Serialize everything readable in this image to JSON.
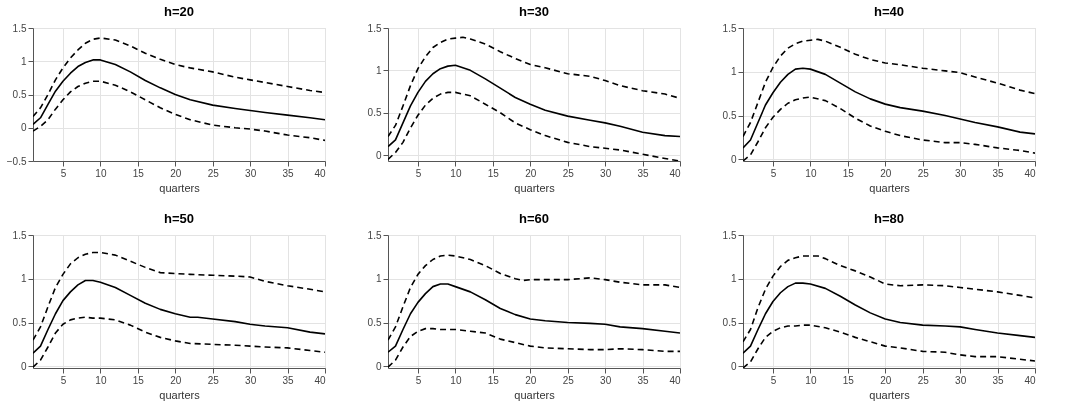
{
  "chart_data": [
    {
      "type": "line",
      "title": "h=20",
      "xlabel": "quarters",
      "xlim": [
        1,
        40
      ],
      "xticks": [
        5,
        10,
        15,
        20,
        25,
        30,
        35,
        40
      ],
      "ylim": [
        -0.5,
        1.5
      ],
      "yticks": [
        -0.5,
        0,
        0.5,
        1,
        1.5
      ],
      "grid": true,
      "legend": false,
      "marker": "none",
      "series": [
        {
          "color": "#000000",
          "line_style": "solid",
          "x": [
            1,
            2,
            3,
            4,
            5,
            6,
            7,
            8,
            9,
            10,
            12,
            14,
            16,
            18,
            20,
            22,
            25,
            28,
            30,
            32,
            35,
            38,
            40
          ],
          "values": [
            0.05,
            0.15,
            0.35,
            0.55,
            0.7,
            0.82,
            0.92,
            0.98,
            1.02,
            1.02,
            0.95,
            0.84,
            0.71,
            0.6,
            0.5,
            0.42,
            0.34,
            0.29,
            0.26,
            0.23,
            0.19,
            0.15,
            0.12
          ]
        },
        {
          "color": "#000000",
          "line_style": "dashed",
          "x": [
            1,
            2,
            3,
            4,
            5,
            6,
            7,
            8,
            9,
            10,
            12,
            14,
            16,
            18,
            20,
            22,
            25,
            28,
            30,
            32,
            35,
            38,
            40
          ],
          "values": [
            0.17,
            0.3,
            0.5,
            0.72,
            0.9,
            1.05,
            1.17,
            1.27,
            1.33,
            1.35,
            1.32,
            1.23,
            1.12,
            1.03,
            0.95,
            0.9,
            0.84,
            0.76,
            0.72,
            0.68,
            0.62,
            0.56,
            0.53
          ]
        },
        {
          "color": "#000000",
          "line_style": "dashed",
          "x": [
            1,
            2,
            3,
            4,
            5,
            6,
            7,
            8,
            9,
            10,
            12,
            14,
            16,
            18,
            20,
            22,
            25,
            28,
            30,
            32,
            35,
            38,
            40
          ],
          "values": [
            -0.05,
            0.02,
            0.12,
            0.28,
            0.42,
            0.54,
            0.62,
            0.67,
            0.7,
            0.7,
            0.64,
            0.54,
            0.42,
            0.3,
            0.2,
            0.12,
            0.04,
            0.0,
            -0.02,
            -0.05,
            -0.11,
            -0.15,
            -0.19
          ]
        }
      ]
    },
    {
      "type": "line",
      "title": "h=30",
      "xlabel": "quarters",
      "xlim": [
        1,
        40
      ],
      "xticks": [
        5,
        10,
        15,
        20,
        25,
        30,
        35,
        40
      ],
      "ylim": [
        -0.07,
        1.5
      ],
      "yticks": [
        0,
        0.5,
        1,
        1.5
      ],
      "grid": true,
      "legend": false,
      "marker": "none",
      "series": [
        {
          "color": "#000000",
          "line_style": "solid",
          "x": [
            1,
            2,
            3,
            4,
            5,
            6,
            7,
            8,
            9,
            10,
            12,
            14,
            16,
            18,
            20,
            22,
            25,
            28,
            30,
            32,
            35,
            38,
            40
          ],
          "values": [
            0.1,
            0.18,
            0.38,
            0.58,
            0.74,
            0.87,
            0.96,
            1.02,
            1.05,
            1.06,
            1.0,
            0.9,
            0.79,
            0.68,
            0.6,
            0.53,
            0.46,
            0.41,
            0.38,
            0.34,
            0.27,
            0.23,
            0.22
          ]
        },
        {
          "color": "#000000",
          "line_style": "dashed",
          "x": [
            1,
            2,
            3,
            4,
            5,
            6,
            7,
            8,
            9,
            10,
            11,
            12,
            14,
            16,
            18,
            20,
            22,
            25,
            28,
            30,
            32,
            35,
            38,
            40
          ],
          "values": [
            0.22,
            0.35,
            0.58,
            0.82,
            1.02,
            1.16,
            1.27,
            1.33,
            1.37,
            1.38,
            1.39,
            1.37,
            1.31,
            1.22,
            1.14,
            1.07,
            1.03,
            0.96,
            0.93,
            0.88,
            0.82,
            0.76,
            0.72,
            0.67
          ]
        },
        {
          "color": "#000000",
          "line_style": "dashed",
          "x": [
            1,
            2,
            3,
            4,
            5,
            6,
            7,
            8,
            9,
            10,
            12,
            14,
            16,
            18,
            20,
            22,
            25,
            28,
            30,
            32,
            35,
            38,
            40
          ],
          "values": [
            -0.05,
            0.03,
            0.15,
            0.32,
            0.47,
            0.59,
            0.67,
            0.72,
            0.74,
            0.74,
            0.7,
            0.6,
            0.5,
            0.38,
            0.3,
            0.23,
            0.15,
            0.1,
            0.08,
            0.06,
            0.01,
            -0.04,
            -0.07
          ]
        }
      ]
    },
    {
      "type": "line",
      "title": "h=40",
      "xlabel": "quarters",
      "xlim": [
        1,
        40
      ],
      "xticks": [
        5,
        10,
        15,
        20,
        25,
        30,
        35,
        40
      ],
      "ylim": [
        -0.02,
        1.5
      ],
      "yticks": [
        0,
        0.5,
        1,
        1.5
      ],
      "grid": true,
      "legend": false,
      "marker": "none",
      "series": [
        {
          "color": "#000000",
          "line_style": "solid",
          "x": [
            1,
            2,
            3,
            4,
            5,
            6,
            7,
            8,
            9,
            10,
            12,
            14,
            16,
            18,
            20,
            22,
            25,
            28,
            30,
            32,
            35,
            38,
            40
          ],
          "values": [
            0.13,
            0.22,
            0.42,
            0.62,
            0.76,
            0.88,
            0.97,
            1.03,
            1.04,
            1.03,
            0.97,
            0.87,
            0.77,
            0.69,
            0.63,
            0.59,
            0.55,
            0.5,
            0.46,
            0.42,
            0.37,
            0.31,
            0.29
          ]
        },
        {
          "color": "#000000",
          "line_style": "dashed",
          "x": [
            1,
            2,
            3,
            4,
            5,
            6,
            7,
            8,
            9,
            10,
            11,
            12,
            14,
            16,
            18,
            20,
            22,
            25,
            28,
            30,
            32,
            35,
            38,
            40
          ],
          "values": [
            0.26,
            0.42,
            0.65,
            0.88,
            1.05,
            1.18,
            1.27,
            1.32,
            1.35,
            1.36,
            1.37,
            1.35,
            1.28,
            1.2,
            1.14,
            1.1,
            1.08,
            1.04,
            1.01,
            0.99,
            0.94,
            0.87,
            0.79,
            0.75
          ]
        },
        {
          "color": "#000000",
          "line_style": "dashed",
          "x": [
            1,
            2,
            3,
            4,
            5,
            6,
            7,
            8,
            9,
            10,
            12,
            14,
            16,
            18,
            20,
            22,
            25,
            28,
            30,
            32,
            35,
            38,
            40
          ],
          "values": [
            -0.02,
            0.05,
            0.2,
            0.36,
            0.48,
            0.57,
            0.64,
            0.68,
            0.7,
            0.71,
            0.67,
            0.58,
            0.47,
            0.38,
            0.32,
            0.27,
            0.22,
            0.19,
            0.19,
            0.17,
            0.13,
            0.1,
            0.07
          ]
        }
      ]
    },
    {
      "type": "line",
      "title": "h=50",
      "xlabel": "quarters",
      "xlim": [
        1,
        40
      ],
      "xticks": [
        5,
        10,
        15,
        20,
        25,
        30,
        35,
        40
      ],
      "ylim": [
        -0.02,
        1.5
      ],
      "yticks": [
        0,
        0.5,
        1,
        1.5
      ],
      "grid": true,
      "legend": false,
      "marker": "none",
      "series": [
        {
          "color": "#000000",
          "line_style": "solid",
          "x": [
            1,
            2,
            3,
            4,
            5,
            6,
            7,
            8,
            9,
            10,
            12,
            14,
            16,
            18,
            20,
            22,
            23,
            25,
            28,
            30,
            32,
            35,
            38,
            40
          ],
          "values": [
            0.15,
            0.23,
            0.42,
            0.6,
            0.75,
            0.85,
            0.93,
            0.98,
            0.98,
            0.96,
            0.9,
            0.81,
            0.72,
            0.65,
            0.6,
            0.56,
            0.56,
            0.54,
            0.51,
            0.48,
            0.46,
            0.44,
            0.39,
            0.37
          ]
        },
        {
          "color": "#000000",
          "line_style": "dashed",
          "x": [
            1,
            2,
            3,
            4,
            5,
            6,
            7,
            8,
            9,
            10,
            12,
            14,
            16,
            18,
            20,
            22,
            25,
            28,
            30,
            32,
            35,
            38,
            40
          ],
          "values": [
            0.3,
            0.45,
            0.68,
            0.9,
            1.05,
            1.17,
            1.24,
            1.28,
            1.3,
            1.3,
            1.27,
            1.2,
            1.13,
            1.07,
            1.06,
            1.05,
            1.04,
            1.03,
            1.02,
            0.97,
            0.92,
            0.88,
            0.85
          ]
        },
        {
          "color": "#000000",
          "line_style": "dashed",
          "x": [
            1,
            2,
            3,
            4,
            5,
            6,
            7,
            8,
            9,
            10,
            12,
            14,
            16,
            18,
            20,
            22,
            25,
            28,
            30,
            32,
            35,
            38,
            40
          ],
          "values": [
            -0.01,
            0.07,
            0.22,
            0.38,
            0.48,
            0.53,
            0.55,
            0.56,
            0.55,
            0.55,
            0.53,
            0.47,
            0.39,
            0.33,
            0.29,
            0.26,
            0.25,
            0.24,
            0.23,
            0.22,
            0.21,
            0.18,
            0.16
          ]
        }
      ]
    },
    {
      "type": "line",
      "title": "h=60",
      "xlabel": "quarters",
      "xlim": [
        1,
        40
      ],
      "xticks": [
        5,
        10,
        15,
        20,
        25,
        30,
        35,
        40
      ],
      "ylim": [
        -0.02,
        1.5
      ],
      "yticks": [
        0,
        0.5,
        1,
        1.5
      ],
      "grid": true,
      "legend": false,
      "marker": "none",
      "series": [
        {
          "color": "#000000",
          "line_style": "solid",
          "x": [
            1,
            2,
            3,
            4,
            5,
            6,
            7,
            8,
            9,
            10,
            12,
            14,
            16,
            18,
            20,
            22,
            25,
            28,
            30,
            32,
            35,
            38,
            40
          ],
          "values": [
            0.16,
            0.23,
            0.42,
            0.6,
            0.73,
            0.83,
            0.91,
            0.94,
            0.94,
            0.91,
            0.85,
            0.76,
            0.66,
            0.59,
            0.54,
            0.52,
            0.5,
            0.49,
            0.48,
            0.45,
            0.43,
            0.4,
            0.38
          ]
        },
        {
          "color": "#000000",
          "line_style": "dashed",
          "x": [
            1,
            2,
            3,
            4,
            5,
            6,
            7,
            8,
            9,
            10,
            12,
            14,
            16,
            18,
            19,
            20,
            22,
            25,
            28,
            30,
            32,
            35,
            38,
            40
          ],
          "values": [
            0.3,
            0.45,
            0.68,
            0.9,
            1.05,
            1.15,
            1.22,
            1.26,
            1.27,
            1.26,
            1.22,
            1.15,
            1.06,
            1.0,
            0.98,
            0.99,
            0.99,
            0.99,
            1.01,
            0.99,
            0.96,
            0.93,
            0.93,
            0.9
          ]
        },
        {
          "color": "#000000",
          "line_style": "dashed",
          "x": [
            1,
            2,
            3,
            4,
            5,
            6,
            7,
            8,
            9,
            10,
            12,
            14,
            16,
            18,
            20,
            22,
            25,
            28,
            30,
            32,
            35,
            38,
            40
          ],
          "values": [
            -0.01,
            0.07,
            0.22,
            0.34,
            0.4,
            0.43,
            0.43,
            0.42,
            0.42,
            0.42,
            0.4,
            0.38,
            0.31,
            0.27,
            0.23,
            0.21,
            0.2,
            0.19,
            0.19,
            0.2,
            0.19,
            0.17,
            0.17
          ]
        }
      ]
    },
    {
      "type": "line",
      "title": "h=80",
      "xlabel": "quarters",
      "xlim": [
        1,
        40
      ],
      "xticks": [
        5,
        10,
        15,
        20,
        25,
        30,
        35,
        40
      ],
      "ylim": [
        -0.02,
        1.5
      ],
      "yticks": [
        0,
        0.5,
        1,
        1.5
      ],
      "grid": true,
      "legend": false,
      "marker": "none",
      "series": [
        {
          "color": "#000000",
          "line_style": "solid",
          "x": [
            1,
            2,
            3,
            4,
            5,
            6,
            7,
            8,
            9,
            10,
            12,
            14,
            16,
            18,
            20,
            22,
            25,
            28,
            30,
            32,
            35,
            38,
            40
          ],
          "values": [
            0.15,
            0.23,
            0.42,
            0.6,
            0.74,
            0.84,
            0.91,
            0.95,
            0.95,
            0.94,
            0.89,
            0.8,
            0.7,
            0.61,
            0.54,
            0.5,
            0.47,
            0.46,
            0.45,
            0.42,
            0.38,
            0.35,
            0.33
          ]
        },
        {
          "color": "#000000",
          "line_style": "dashed",
          "x": [
            1,
            2,
            3,
            4,
            5,
            6,
            7,
            8,
            9,
            10,
            11,
            12,
            14,
            16,
            18,
            20,
            22,
            25,
            28,
            30,
            32,
            35,
            38,
            40
          ],
          "values": [
            0.28,
            0.42,
            0.67,
            0.88,
            1.03,
            1.14,
            1.21,
            1.24,
            1.26,
            1.26,
            1.26,
            1.23,
            1.15,
            1.09,
            1.02,
            0.94,
            0.92,
            0.93,
            0.92,
            0.9,
            0.88,
            0.85,
            0.81,
            0.78
          ]
        },
        {
          "color": "#000000",
          "line_style": "dashed",
          "x": [
            1,
            2,
            3,
            4,
            5,
            6,
            7,
            8,
            9,
            10,
            12,
            14,
            16,
            18,
            20,
            22,
            25,
            28,
            30,
            32,
            35,
            38,
            40
          ],
          "values": [
            -0.02,
            0.05,
            0.2,
            0.33,
            0.4,
            0.44,
            0.46,
            0.46,
            0.47,
            0.47,
            0.44,
            0.39,
            0.33,
            0.28,
            0.23,
            0.21,
            0.17,
            0.16,
            0.13,
            0.11,
            0.11,
            0.08,
            0.06
          ]
        }
      ]
    }
  ]
}
